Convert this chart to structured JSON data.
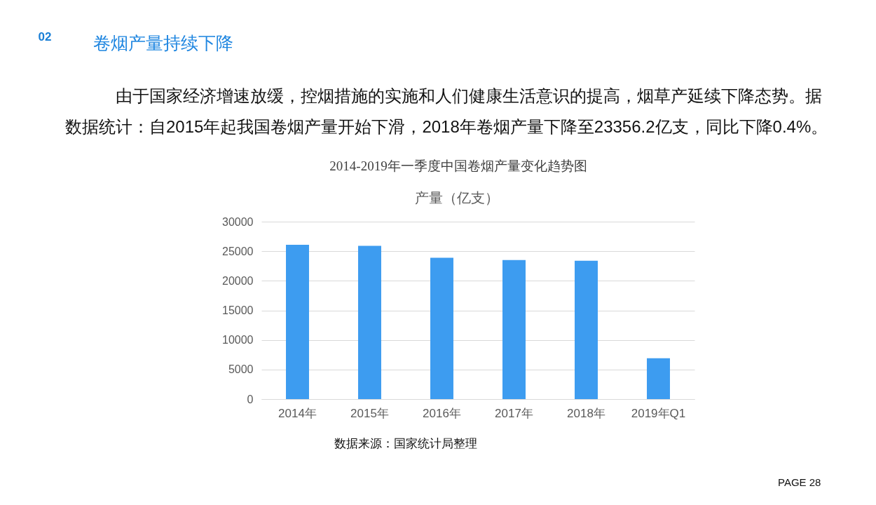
{
  "chart_data": {
    "type": "bar",
    "title": "2014-2019年一季度中国卷烟产量变化趋势图",
    "subtitle": "产量（亿支）",
    "categories": [
      "2014年",
      "2015年",
      "2016年",
      "2017年",
      "2018年",
      "2019年Q1"
    ],
    "values": [
      26100,
      25900,
      23900,
      23500,
      23400,
      6900
    ],
    "color": "#3d9cf0",
    "ylim": [
      0,
      30000
    ],
    "yticks": [
      0,
      5000,
      10000,
      15000,
      20000,
      25000,
      30000
    ],
    "grid": "y",
    "annotations": [
      "02",
      "卷烟产量持续下降",
      "由于国家经济增速放缓，控烟措施的实施和人们健康生活意识的提高，烟草产延续下降态势。据数据统计：自2015年起我国卷烟产量开始下滑，2018年卷烟产量下降至23356.2亿支，同比下降0.4%。",
      "数据来源：国家统计局整理",
      "PAGE 28"
    ]
  }
}
